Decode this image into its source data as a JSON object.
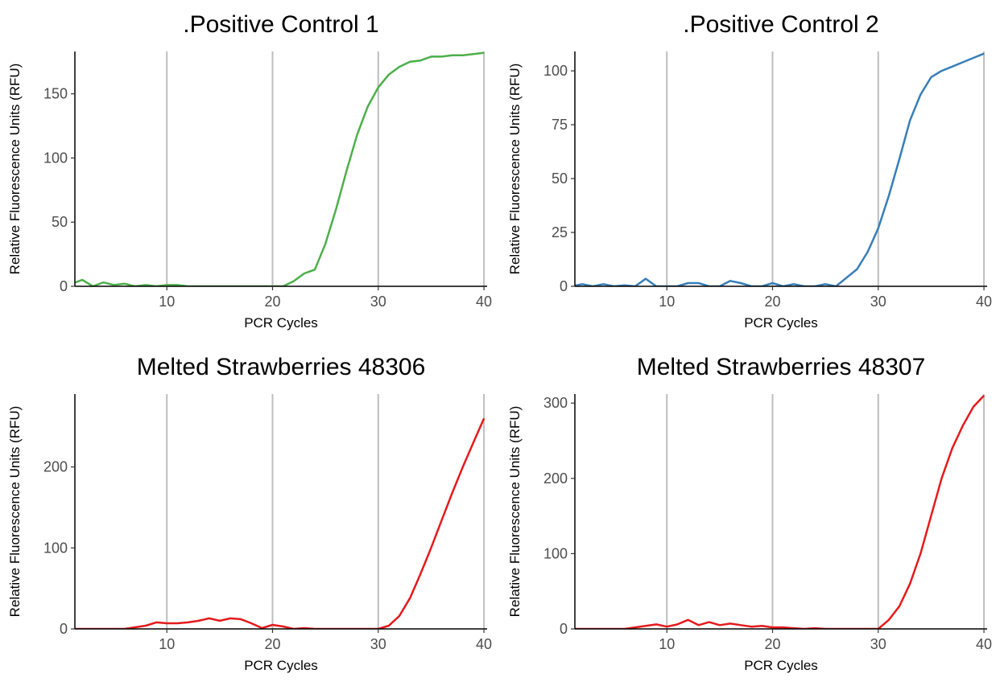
{
  "chart_data": [
    {
      "type": "line",
      "title": ".Positive Control 1",
      "xlabel": "PCR Cycles",
      "ylabel": "Relative Fluorescence Units (RFU)",
      "xlim": [
        1.3,
        40.3
      ],
      "ylim": [
        0,
        183
      ],
      "xticks": [
        "10",
        "20",
        "30",
        "40"
      ],
      "yticks": [
        "0",
        "50",
        "100",
        "150"
      ],
      "vgrid": [
        10,
        20,
        30,
        40
      ],
      "color": "#4DAF4A",
      "series": [
        {
          "x": [
            1,
            2,
            3,
            4,
            5,
            6,
            7,
            8,
            9,
            10,
            11,
            12,
            13,
            14,
            15,
            16,
            17,
            18,
            19,
            20,
            21,
            22,
            23,
            24,
            25,
            26,
            27,
            28,
            29,
            30,
            31,
            32,
            33,
            34,
            35,
            36,
            37,
            38,
            39,
            40
          ],
          "y": [
            2,
            5,
            0,
            3,
            1,
            2,
            0,
            1,
            0,
            1,
            1,
            0,
            0,
            0,
            0,
            0,
            0,
            0,
            0,
            0,
            0,
            4,
            10,
            13,
            33,
            60,
            90,
            118,
            140,
            155,
            165,
            171,
            175,
            176,
            179,
            179,
            180,
            180,
            181,
            182
          ]
        }
      ]
    },
    {
      "type": "line",
      "title": ".Positive Control 2",
      "xlabel": "PCR Cycles",
      "ylabel": "Relative Fluorescence Units (RFU)",
      "xlim": [
        1.3,
        40.3
      ],
      "ylim": [
        0,
        109
      ],
      "xticks": [
        "10",
        "20",
        "30",
        "40"
      ],
      "yticks": [
        "0",
        "25",
        "50",
        "75",
        "100"
      ],
      "vgrid": [
        10,
        20,
        30,
        40
      ],
      "color": "#377EB8",
      "series": [
        {
          "x": [
            1,
            2,
            3,
            4,
            5,
            6,
            7,
            8,
            9,
            10,
            11,
            12,
            13,
            14,
            15,
            16,
            17,
            18,
            19,
            20,
            21,
            22,
            23,
            24,
            25,
            26,
            27,
            28,
            29,
            30,
            31,
            32,
            33,
            34,
            35,
            36,
            37,
            38,
            39,
            40
          ],
          "y": [
            0,
            1,
            0,
            1,
            0,
            0.5,
            0,
            3.5,
            0,
            0,
            0,
            1.5,
            1.5,
            0,
            0,
            2.5,
            1.5,
            0,
            0,
            1.5,
            0,
            1,
            0,
            0,
            1,
            0,
            4,
            8,
            16,
            27,
            42,
            59,
            77,
            89,
            97,
            100,
            102,
            104,
            106,
            108
          ]
        }
      ]
    },
    {
      "type": "line",
      "title": "Melted Strawberries 48306",
      "xlabel": "PCR Cycles",
      "ylabel": "Relative Fluorescence Units (RFU)",
      "xlim": [
        1.3,
        40.3
      ],
      "ylim": [
        0,
        290
      ],
      "xticks": [
        "10",
        "20",
        "30",
        "40"
      ],
      "yticks": [
        "0",
        "100",
        "200"
      ],
      "vgrid": [
        10,
        20,
        30,
        40
      ],
      "color": "#E41A1C",
      "series": [
        {
          "x": [
            1,
            2,
            3,
            4,
            5,
            6,
            7,
            8,
            9,
            10,
            11,
            12,
            13,
            14,
            15,
            16,
            17,
            18,
            19,
            20,
            21,
            22,
            23,
            24,
            25,
            26,
            27,
            28,
            29,
            30,
            31,
            32,
            33,
            34,
            35,
            36,
            37,
            38,
            39,
            40
          ],
          "y": [
            0,
            0,
            0,
            0,
            0,
            0,
            2,
            4,
            8,
            7,
            7,
            8,
            10,
            13,
            10,
            13,
            12,
            7,
            1,
            5,
            3,
            0,
            1,
            0,
            0,
            0,
            0,
            0,
            0,
            0,
            4,
            16,
            38,
            68,
            100,
            134,
            168,
            200,
            230,
            260
          ]
        }
      ]
    },
    {
      "type": "line",
      "title": "Melted Strawberries 48307",
      "xlabel": "PCR Cycles",
      "ylabel": "Relative Fluorescence Units (RFU)",
      "xlim": [
        1.3,
        40.3
      ],
      "ylim": [
        0,
        312
      ],
      "xticks": [
        "10",
        "20",
        "30",
        "40"
      ],
      "yticks": [
        "0",
        "100",
        "200",
        "300"
      ],
      "vgrid": [
        10,
        20,
        30,
        40
      ],
      "color": "#E41A1C",
      "series": [
        {
          "x": [
            1,
            2,
            3,
            4,
            5,
            6,
            7,
            8,
            9,
            10,
            11,
            12,
            13,
            14,
            15,
            16,
            17,
            18,
            19,
            20,
            21,
            22,
            23,
            24,
            25,
            26,
            27,
            28,
            29,
            30,
            31,
            32,
            33,
            34,
            35,
            36,
            37,
            38,
            39,
            40
          ],
          "y": [
            0,
            0,
            0,
            0,
            0,
            0,
            2,
            4,
            6,
            3,
            6,
            12,
            5,
            9,
            5,
            7,
            5,
            3,
            4,
            2,
            2,
            1,
            0,
            1,
            0,
            0,
            0,
            0,
            0,
            0,
            12,
            30,
            60,
            100,
            150,
            200,
            240,
            270,
            295,
            310
          ]
        }
      ]
    }
  ]
}
